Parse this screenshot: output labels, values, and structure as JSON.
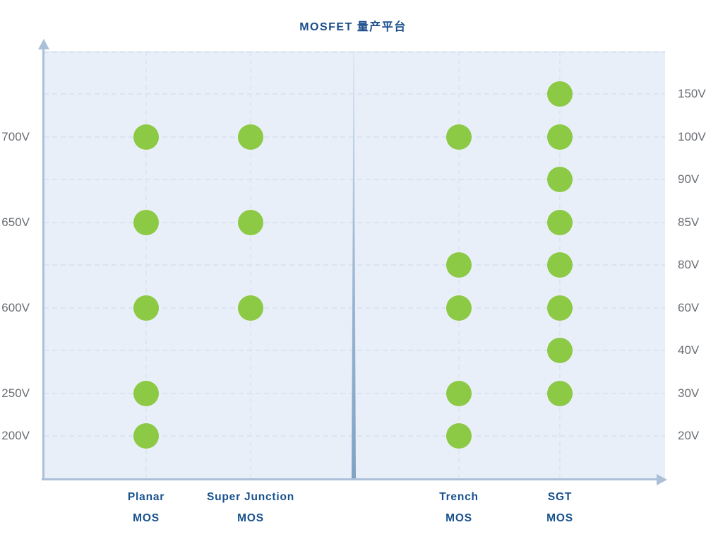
{
  "title": "MOSFET 量产平台",
  "colors": {
    "title_blue": "#1B4E8C",
    "category_blue": "#17518E",
    "axis_label_gray": "#6A6E74",
    "dot_green": "#8CC944",
    "plot_background": "#E9EFF8",
    "gridline": "#D8E3F0",
    "axis_line": "#ABC0D8",
    "divider": "#7FA2C4"
  },
  "chart_data": {
    "type": "scatter",
    "title": "MOSFET 量产平台",
    "grid": "dashed",
    "legend": "none",
    "left_axis_label_unit": "V",
    "right_axis_label_unit": "V",
    "rows": [
      {
        "right_label": "150V",
        "left_label": ""
      },
      {
        "right_label": "100V",
        "left_label": "700V"
      },
      {
        "right_label": "90V",
        "left_label": ""
      },
      {
        "right_label": "85V",
        "left_label": "650V"
      },
      {
        "right_label": "80V",
        "left_label": ""
      },
      {
        "right_label": "60V",
        "left_label": "600V"
      },
      {
        "right_label": "40V",
        "left_label": ""
      },
      {
        "right_label": "30V",
        "left_label": "250V"
      },
      {
        "right_label": "20V",
        "left_label": "200V"
      }
    ],
    "columns": [
      {
        "name_line1": "Planar",
        "name_line2": "MOS",
        "voltage_scale": "left",
        "dot_voltages": [
          "700V",
          "650V",
          "600V",
          "250V",
          "200V"
        ],
        "dot_rows": [
          1,
          3,
          5,
          7,
          8
        ]
      },
      {
        "name_line1": "Super Junction",
        "name_line2": "MOS",
        "voltage_scale": "left",
        "dot_voltages": [
          "700V",
          "650V",
          "600V"
        ],
        "dot_rows": [
          1,
          3,
          5
        ]
      },
      {
        "name_line1": "Trench",
        "name_line2": "MOS",
        "voltage_scale": "right",
        "dot_voltages": [
          "100V",
          "80V",
          "60V",
          "30V",
          "20V"
        ],
        "dot_rows": [
          1,
          4,
          5,
          7,
          8
        ]
      },
      {
        "name_line1": "SGT",
        "name_line2": "MOS",
        "voltage_scale": "right",
        "dot_voltages": [
          "150V",
          "100V",
          "90V",
          "85V",
          "80V",
          "60V",
          "40V",
          "30V"
        ],
        "dot_rows": [
          0,
          1,
          2,
          3,
          4,
          5,
          6,
          7
        ]
      }
    ],
    "divider_between_columns": [
      "Super Junction MOS",
      "Trench MOS"
    ]
  }
}
